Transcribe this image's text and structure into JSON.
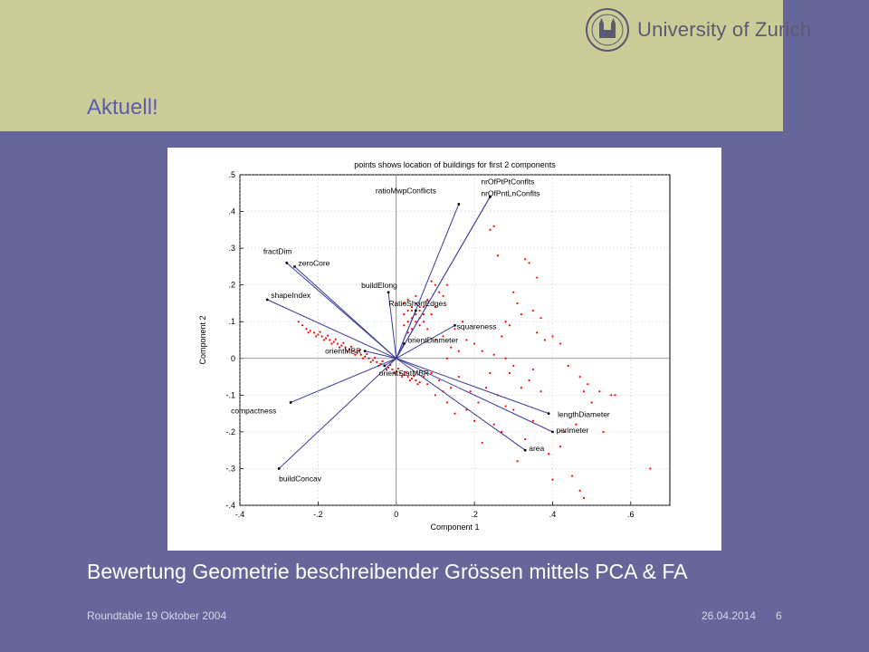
{
  "slide": {
    "title": "Aktuell!",
    "caption": "Bewertung Geometrie beschreibender Grössen mittels PCA & FA",
    "footer_left": "Roundtable 19 Oktober 2004",
    "footer_date": "26.04.2014",
    "page_number": "6"
  },
  "logo": {
    "text": "University of Zurich",
    "icon": "university-seal-icon"
  },
  "colors": {
    "background": "#66669a",
    "header": "#cccc99",
    "title": "#5b5bb0",
    "vectors": "#3b3b9a",
    "points": "#ff0000"
  },
  "chart_data": {
    "type": "biplot",
    "title": "points shows location of buildings for first 2 components",
    "xlabel": "Component 1",
    "ylabel": "Component 2",
    "xlim": [
      -0.4,
      0.7
    ],
    "ylim": [
      -0.4,
      0.5
    ],
    "xticks": [
      -0.4,
      -0.2,
      0,
      0.2,
      0.4,
      0.6
    ],
    "yticks": [
      -0.4,
      -0.3,
      -0.2,
      -0.1,
      0,
      0.1,
      0.2,
      0.3,
      0.4,
      0.5
    ],
    "grid": true,
    "vectors": [
      {
        "name": "ratioMwpConflicts",
        "x": 0.16,
        "y": 0.42
      },
      {
        "name": "nrOfPtPtConflts",
        "x": 0.24,
        "y": 0.44
      },
      {
        "name": "nrOfPntLnConflts",
        "x": 0.24,
        "y": 0.44
      },
      {
        "name": "fractDim",
        "x": -0.28,
        "y": 0.26
      },
      {
        "name": "zeroCore",
        "x": -0.26,
        "y": 0.25
      },
      {
        "name": "buildElong",
        "x": -0.02,
        "y": 0.18
      },
      {
        "name": "shapeIndex",
        "x": -0.33,
        "y": 0.16
      },
      {
        "name": "RatioShortEdges",
        "x": 0.05,
        "y": 0.13
      },
      {
        "name": "squareness",
        "x": 0.15,
        "y": 0.09
      },
      {
        "name": "orientDiameter",
        "x": 0.02,
        "y": 0.04
      },
      {
        "name": "orientMBR",
        "x": -0.08,
        "y": 0.02
      },
      {
        "name": "orientStatMBR",
        "x": -0.03,
        "y": -0.02
      },
      {
        "name": "lengthDiameter",
        "x": 0.39,
        "y": -0.15
      },
      {
        "name": "perimeter",
        "x": 0.4,
        "y": -0.2
      },
      {
        "name": "area",
        "x": 0.33,
        "y": -0.25
      },
      {
        "name": "compactness",
        "x": -0.27,
        "y": -0.12
      },
      {
        "name": "buildConcav",
        "x": -0.3,
        "y": -0.3
      }
    ],
    "points": [
      [
        -0.23,
        0.08
      ],
      [
        -0.22,
        0.075
      ],
      [
        -0.21,
        0.07
      ],
      [
        -0.2,
        0.065
      ],
      [
        -0.19,
        0.06
      ],
      [
        -0.18,
        0.055
      ],
      [
        -0.17,
        0.05
      ],
      [
        -0.16,
        0.045
      ],
      [
        -0.15,
        0.04
      ],
      [
        -0.14,
        0.035
      ],
      [
        -0.13,
        0.03
      ],
      [
        -0.12,
        0.025
      ],
      [
        -0.11,
        0.02
      ],
      [
        -0.1,
        0.015
      ],
      [
        -0.09,
        0.01
      ],
      [
        -0.08,
        0.005
      ],
      [
        -0.07,
        0.0
      ],
      [
        -0.06,
        -0.005
      ],
      [
        -0.05,
        -0.01
      ],
      [
        -0.04,
        -0.015
      ],
      [
        -0.03,
        -0.02
      ],
      [
        -0.02,
        -0.025
      ],
      [
        -0.01,
        -0.03
      ],
      [
        0.0,
        -0.035
      ],
      [
        0.01,
        -0.04
      ],
      [
        0.02,
        -0.045
      ],
      [
        0.03,
        -0.05
      ],
      [
        0.04,
        -0.055
      ],
      [
        0.05,
        -0.06
      ],
      [
        0.06,
        -0.065
      ],
      [
        -0.225,
        0.07
      ],
      [
        -0.205,
        0.06
      ],
      [
        -0.185,
        0.05
      ],
      [
        -0.165,
        0.04
      ],
      [
        -0.145,
        0.03
      ],
      [
        -0.125,
        0.02
      ],
      [
        -0.105,
        0.01
      ],
      [
        -0.085,
        0.0
      ],
      [
        -0.065,
        -0.01
      ],
      [
        -0.045,
        -0.02
      ],
      [
        -0.025,
        -0.03
      ],
      [
        -0.005,
        -0.04
      ],
      [
        0.015,
        -0.05
      ],
      [
        0.035,
        -0.06
      ],
      [
        0.055,
        -0.07
      ],
      [
        -0.195,
        0.072
      ],
      [
        -0.175,
        0.062
      ],
      [
        -0.155,
        0.052
      ],
      [
        -0.135,
        0.042
      ],
      [
        -0.115,
        0.032
      ],
      [
        -0.095,
        0.022
      ],
      [
        -0.075,
        0.012
      ],
      [
        -0.055,
        0.002
      ],
      [
        -0.035,
        -0.008
      ],
      [
        -0.015,
        -0.018
      ],
      [
        0.005,
        -0.028
      ],
      [
        0.025,
        -0.038
      ],
      [
        0.045,
        -0.048
      ],
      [
        -0.24,
        0.09
      ],
      [
        -0.25,
        0.1
      ],
      [
        0.02,
        0.12
      ],
      [
        0.03,
        0.13
      ],
      [
        0.04,
        0.14
      ],
      [
        0.05,
        0.15
      ],
      [
        0.06,
        0.13
      ],
      [
        0.07,
        0.12
      ],
      [
        0.03,
        0.1
      ],
      [
        0.04,
        0.11
      ],
      [
        0.05,
        0.1
      ],
      [
        0.06,
        0.11
      ],
      [
        0.07,
        0.14
      ],
      [
        0.08,
        0.16
      ],
      [
        0.02,
        0.15
      ],
      [
        0.03,
        0.16
      ],
      [
        0.05,
        0.17
      ],
      [
        0.06,
        0.09
      ],
      [
        0.04,
        0.08
      ],
      [
        0.07,
        0.1
      ],
      [
        0.08,
        0.08
      ],
      [
        0.03,
        0.07
      ],
      [
        0.05,
        0.12
      ],
      [
        0.04,
        0.13
      ],
      [
        0.06,
        0.14
      ],
      [
        0.02,
        0.09
      ],
      [
        0.09,
        0.12
      ],
      [
        0.1,
        0.14
      ],
      [
        0.1,
        0.2
      ],
      [
        0.09,
        0.21
      ],
      [
        0.11,
        0.18
      ],
      [
        0.12,
        0.17
      ],
      [
        0.13,
        0.2
      ],
      [
        0.15,
        0.08
      ],
      [
        0.17,
        0.1
      ],
      [
        0.18,
        0.05
      ],
      [
        0.12,
        0.06
      ],
      [
        0.1,
        0.05
      ],
      [
        0.14,
        0.03
      ],
      [
        0.16,
        0.02
      ],
      [
        0.2,
        0.04
      ],
      [
        0.22,
        0.02
      ],
      [
        0.25,
        0.01
      ],
      [
        0.28,
        0.0
      ],
      [
        0.3,
        -0.02
      ],
      [
        0.35,
        -0.03
      ],
      [
        0.27,
        0.06
      ],
      [
        0.24,
        0.35
      ],
      [
        0.25,
        0.36
      ],
      [
        0.26,
        0.28
      ],
      [
        0.3,
        0.18
      ],
      [
        0.31,
        0.15
      ],
      [
        0.28,
        0.1
      ],
      [
        0.29,
        0.09
      ],
      [
        0.33,
        0.27
      ],
      [
        0.34,
        0.26
      ],
      [
        0.36,
        0.22
      ],
      [
        0.32,
        0.12
      ],
      [
        0.35,
        0.13
      ],
      [
        0.37,
        0.11
      ],
      [
        0.4,
        0.06
      ],
      [
        0.36,
        0.07
      ],
      [
        0.38,
        0.05
      ],
      [
        0.42,
        0.04
      ],
      [
        0.44,
        -0.02
      ],
      [
        0.47,
        -0.05
      ],
      [
        0.49,
        -0.07
      ],
      [
        0.52,
        -0.09
      ],
      [
        0.48,
        -0.09
      ],
      [
        0.5,
        -0.12
      ],
      [
        0.53,
        -0.2
      ],
      [
        0.46,
        -0.18
      ],
      [
        0.43,
        -0.2
      ],
      [
        0.42,
        -0.24
      ],
      [
        0.39,
        -0.26
      ],
      [
        0.4,
        -0.33
      ],
      [
        0.45,
        -0.32
      ],
      [
        0.47,
        -0.36
      ],
      [
        0.48,
        -0.38
      ],
      [
        0.55,
        -0.1
      ],
      [
        0.56,
        -0.1
      ],
      [
        0.65,
        -0.3
      ],
      [
        0.31,
        -0.28
      ],
      [
        0.33,
        -0.22
      ],
      [
        0.35,
        -0.17
      ],
      [
        0.3,
        -0.14
      ],
      [
        0.25,
        -0.18
      ],
      [
        0.27,
        -0.2
      ],
      [
        0.22,
        -0.23
      ],
      [
        0.2,
        -0.17
      ],
      [
        0.18,
        -0.14
      ],
      [
        0.15,
        -0.15
      ],
      [
        0.13,
        -0.12
      ],
      [
        0.12,
        -0.09
      ],
      [
        0.1,
        -0.1
      ],
      [
        0.08,
        -0.07
      ],
      [
        0.07,
        -0.05
      ],
      [
        0.09,
        -0.04
      ],
      [
        0.11,
        -0.06
      ],
      [
        0.14,
        -0.08
      ],
      [
        0.16,
        -0.05
      ],
      [
        0.19,
        -0.09
      ],
      [
        0.21,
        -0.12
      ],
      [
        0.23,
        -0.08
      ],
      [
        0.26,
        -0.1
      ],
      [
        0.28,
        -0.13
      ],
      [
        0.32,
        -0.08
      ],
      [
        0.34,
        -0.06
      ],
      [
        0.37,
        -0.09
      ],
      [
        0.29,
        -0.04
      ],
      [
        0.24,
        -0.04
      ],
      [
        0.13,
        0.0
      ]
    ]
  }
}
